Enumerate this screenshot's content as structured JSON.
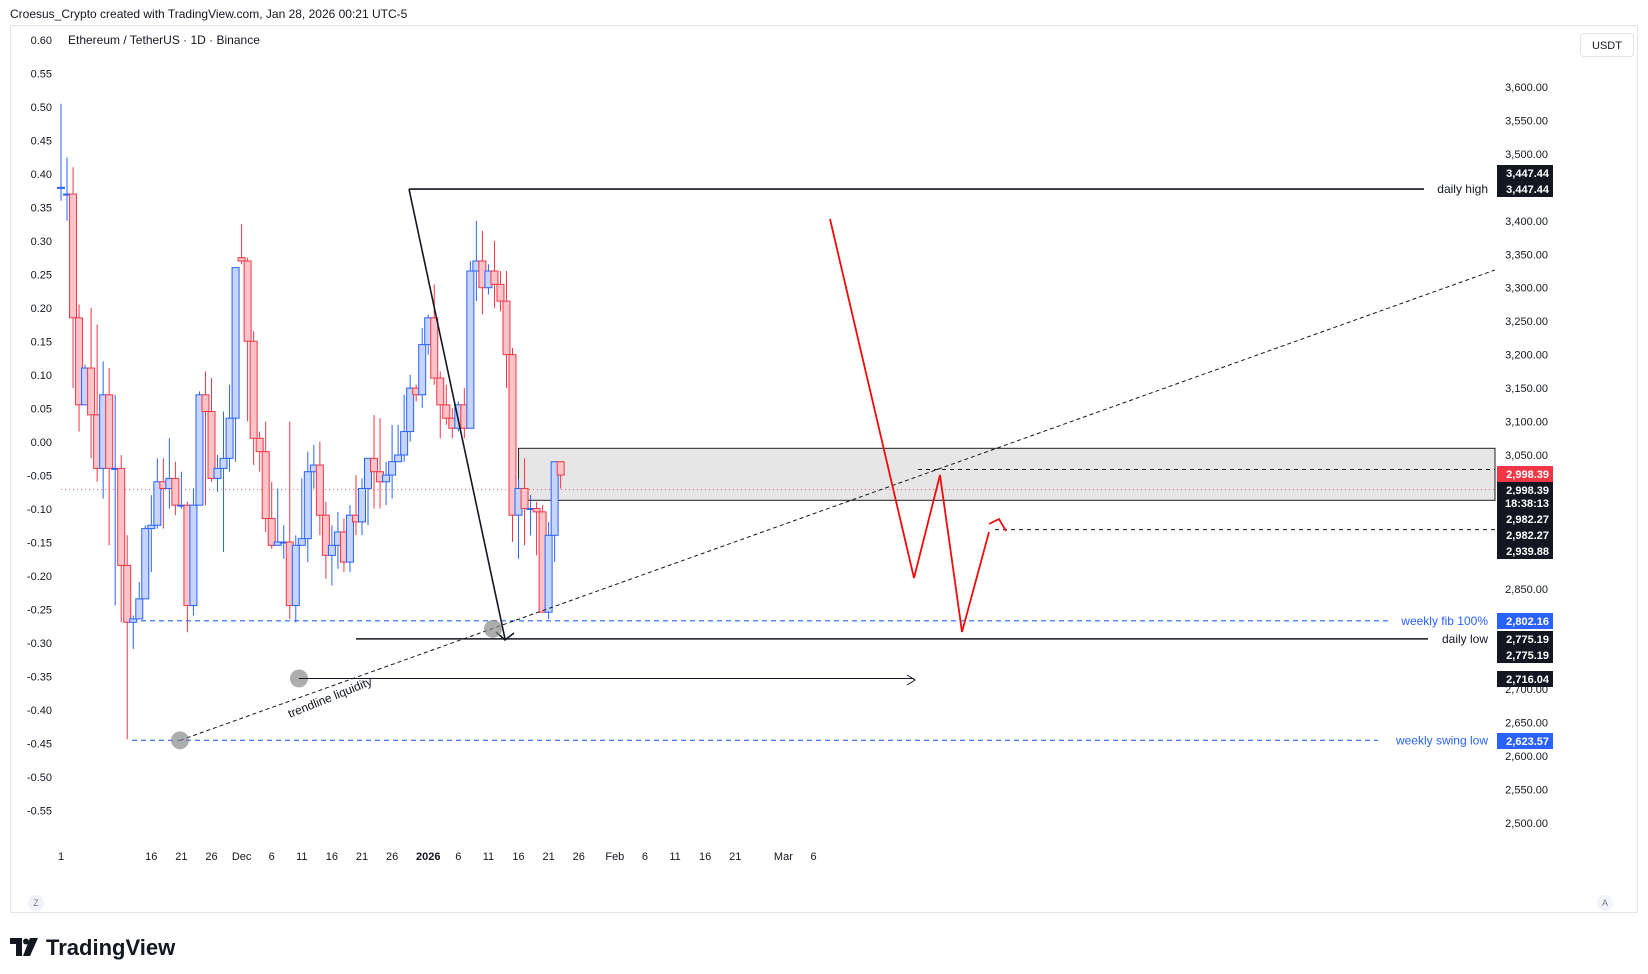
{
  "header": {
    "created_line": "Croesus_Crypto created with TradingView.com, Jan 28, 2026 00:21 UTC-5",
    "symbol_line": "Ethereum / TetherUS · 1D · Binance",
    "currency": "USDT",
    "brand": "TradingView",
    "scale_left_btn": "Z",
    "scale_auto_btn": "A"
  },
  "colors": {
    "up": "#2962ff",
    "down": "#f23645",
    "up_fill": "#c5d5ff",
    "down_fill": "#fcc3c8",
    "annotation_red": "#f20b0b",
    "fib_blue": "#2962ff"
  },
  "chart_data": {
    "type": "candlestick",
    "title": "Ethereum / TetherUS · 1D · Binance",
    "ylim": [
      2460,
      3680
    ],
    "y_ticks": [
      2500,
      2550,
      2600,
      2650,
      2700,
      2750,
      2800,
      2850,
      2900,
      2950,
      3000,
      3050,
      3100,
      3150,
      3200,
      3250,
      3300,
      3350,
      3400,
      3450,
      3500,
      3550,
      3600
    ],
    "y_tick_labels": [
      "2,500.00",
      "2,550.00",
      "2,600.00",
      "2,650.00",
      "2,700.00",
      "",
      "",
      "2,850.00",
      "",
      "",
      "",
      "3,050.00",
      "3,100.00",
      "3,150.00",
      "3,200.00",
      "3,250.00",
      "3,300.00",
      "3,350.00",
      "3,400.00",
      "",
      "3,500.00",
      "3,550.00",
      "3,600.00"
    ],
    "left_ticks": [
      "0.60",
      "0.55",
      "0.50",
      "0.45",
      "0.40",
      "0.35",
      "0.30",
      "0.25",
      "0.20",
      "0.15",
      "0.10",
      "0.05",
      "0.00",
      "-0.05",
      "-0.10",
      "-0.15",
      "-0.20",
      "-0.25",
      "-0.30",
      "-0.35",
      "-0.40",
      "-0.45",
      "-0.50",
      "-0.55"
    ],
    "x_labels": [
      {
        "label": "1",
        "day": 0
      },
      {
        "label": "16",
        "day": 15
      },
      {
        "label": "21",
        "day": 20
      },
      {
        "label": "26",
        "day": 25
      },
      {
        "label": "Dec",
        "day": 30
      },
      {
        "label": "6",
        "day": 35
      },
      {
        "label": "11",
        "day": 40
      },
      {
        "label": "16",
        "day": 45
      },
      {
        "label": "21",
        "day": 50
      },
      {
        "label": "26",
        "day": 55
      },
      {
        "label": "2026",
        "day": 61
      },
      {
        "label": "6",
        "day": 66
      },
      {
        "label": "11",
        "day": 71
      },
      {
        "label": "16",
        "day": 76
      },
      {
        "label": "21",
        "day": 81
      },
      {
        "label": "26",
        "day": 86
      },
      {
        "label": "Feb",
        "day": 92
      },
      {
        "label": "6",
        "day": 97
      },
      {
        "label": "11",
        "day": 102
      },
      {
        "label": "16",
        "day": 107
      },
      {
        "label": "21",
        "day": 112
      },
      {
        "label": "Mar",
        "day": 120
      },
      {
        "label": "6",
        "day": 125
      }
    ],
    "candles": [
      {
        "day": 0,
        "o": 3450,
        "h": 3575,
        "l": 3430,
        "c": 3450
      },
      {
        "day": 1,
        "o": 3440,
        "h": 3495,
        "l": 3400,
        "c": 3440
      },
      {
        "day": 2,
        "o": 3440,
        "h": 3480,
        "l": 3150,
        "c": 3255
      },
      {
        "day": 3,
        "o": 3255,
        "h": 3275,
        "l": 3085,
        "c": 3125
      },
      {
        "day": 4,
        "o": 3125,
        "h": 3185,
        "l": 3125,
        "c": 3180
      },
      {
        "day": 5,
        "o": 3180,
        "h": 3270,
        "l": 3045,
        "c": 3110
      },
      {
        "day": 6,
        "o": 3110,
        "h": 3245,
        "l": 3010,
        "c": 3030
      },
      {
        "day": 7,
        "o": 3030,
        "h": 3190,
        "l": 2985,
        "c": 3140
      },
      {
        "day": 8,
        "o": 3140,
        "h": 3180,
        "l": 2915,
        "c": 3030
      },
      {
        "day": 9,
        "o": 3030,
        "h": 3140,
        "l": 2825,
        "c": 3030
      },
      {
        "day": 10,
        "o": 3030,
        "h": 3050,
        "l": 2800,
        "c": 2885
      },
      {
        "day": 11,
        "o": 2885,
        "h": 2930,
        "l": 2625,
        "c": 2800
      },
      {
        "day": 12,
        "o": 2800,
        "h": 2810,
        "l": 2760,
        "c": 2805
      },
      {
        "day": 13,
        "o": 2805,
        "h": 2860,
        "l": 2805,
        "c": 2835
      },
      {
        "day": 14,
        "o": 2835,
        "h": 2945,
        "l": 2835,
        "c": 2940
      },
      {
        "day": 15,
        "o": 2940,
        "h": 2990,
        "l": 2875,
        "c": 2945
      },
      {
        "day": 16,
        "o": 2945,
        "h": 3045,
        "l": 2940,
        "c": 3010
      },
      {
        "day": 17,
        "o": 3010,
        "h": 3045,
        "l": 2940,
        "c": 3000
      },
      {
        "day": 18,
        "o": 3000,
        "h": 3075,
        "l": 2970,
        "c": 3015
      },
      {
        "day": 19,
        "o": 3015,
        "h": 3040,
        "l": 2960,
        "c": 2975
      },
      {
        "day": 20,
        "o": 2975,
        "h": 3025,
        "l": 2970,
        "c": 2975
      },
      {
        "day": 21,
        "o": 2975,
        "h": 2980,
        "l": 2785,
        "c": 2825
      },
      {
        "day": 22,
        "o": 2825,
        "h": 3000,
        "l": 2810,
        "c": 2975
      },
      {
        "day": 23,
        "o": 2975,
        "h": 3145,
        "l": 2975,
        "c": 3140
      },
      {
        "day": 24,
        "o": 3140,
        "h": 3175,
        "l": 2975,
        "c": 3115
      },
      {
        "day": 25,
        "o": 3115,
        "h": 3165,
        "l": 3010,
        "c": 3015
      },
      {
        "day": 26,
        "o": 3015,
        "h": 3050,
        "l": 2995,
        "c": 3030
      },
      {
        "day": 27,
        "o": 3030,
        "h": 3115,
        "l": 2905,
        "c": 3045
      },
      {
        "day": 28,
        "o": 3045,
        "h": 3155,
        "l": 3025,
        "c": 3105
      },
      {
        "day": 29,
        "o": 3105,
        "h": 3320,
        "l": 3040,
        "c": 3330
      },
      {
        "day": 30,
        "o": 3345,
        "h": 3395,
        "l": 3335,
        "c": 3340
      },
      {
        "day": 31,
        "o": 3340,
        "h": 3345,
        "l": 3100,
        "c": 3220
      },
      {
        "day": 32,
        "o": 3220,
        "h": 3235,
        "l": 3035,
        "c": 3075
      },
      {
        "day": 33,
        "o": 3075,
        "h": 3085,
        "l": 3025,
        "c": 3055
      },
      {
        "day": 34,
        "o": 3055,
        "h": 3100,
        "l": 2935,
        "c": 2955
      },
      {
        "day": 35,
        "o": 2955,
        "h": 3010,
        "l": 2910,
        "c": 2915
      },
      {
        "day": 36,
        "o": 2915,
        "h": 3000,
        "l": 2915,
        "c": 2920
      },
      {
        "day": 37,
        "o": 2920,
        "h": 2945,
        "l": 2895,
        "c": 2920
      },
      {
        "day": 38,
        "o": 2920,
        "h": 3100,
        "l": 2805,
        "c": 2825
      },
      {
        "day": 39,
        "o": 2825,
        "h": 2930,
        "l": 2800,
        "c": 2915
      },
      {
        "day": 40,
        "o": 2915,
        "h": 3015,
        "l": 2915,
        "c": 2925
      },
      {
        "day": 41,
        "o": 2925,
        "h": 3055,
        "l": 2890,
        "c": 3025
      },
      {
        "day": 42,
        "o": 3025,
        "h": 3065,
        "l": 3000,
        "c": 3035
      },
      {
        "day": 43,
        "o": 3035,
        "h": 3070,
        "l": 2930,
        "c": 2960
      },
      {
        "day": 44,
        "o": 2960,
        "h": 2980,
        "l": 2865,
        "c": 2900
      },
      {
        "day": 45,
        "o": 2900,
        "h": 2945,
        "l": 2855,
        "c": 2915
      },
      {
        "day": 46,
        "o": 2915,
        "h": 2965,
        "l": 2880,
        "c": 2935
      },
      {
        "day": 47,
        "o": 2935,
        "h": 2955,
        "l": 2875,
        "c": 2890
      },
      {
        "day": 48,
        "o": 2890,
        "h": 2975,
        "l": 2875,
        "c": 2960
      },
      {
        "day": 49,
        "o": 2960,
        "h": 3020,
        "l": 2930,
        "c": 2950
      },
      {
        "day": 50,
        "o": 2950,
        "h": 3015,
        "l": 2930,
        "c": 3000
      },
      {
        "day": 51,
        "o": 3000,
        "h": 3035,
        "l": 2945,
        "c": 3045
      },
      {
        "day": 52,
        "o": 3045,
        "h": 3110,
        "l": 2970,
        "c": 3025
      },
      {
        "day": 53,
        "o": 3025,
        "h": 3105,
        "l": 2970,
        "c": 3010
      },
      {
        "day": 54,
        "o": 3010,
        "h": 3040,
        "l": 2975,
        "c": 3020
      },
      {
        "day": 55,
        "o": 3020,
        "h": 3095,
        "l": 2985,
        "c": 3040
      },
      {
        "day": 56,
        "o": 3040,
        "h": 3095,
        "l": 3040,
        "c": 3050
      },
      {
        "day": 57,
        "o": 3050,
        "h": 3140,
        "l": 3040,
        "c": 3085
      },
      {
        "day": 58,
        "o": 3085,
        "h": 3170,
        "l": 3070,
        "c": 3150
      },
      {
        "day": 59,
        "o": 3150,
        "h": 3155,
        "l": 3130,
        "c": 3140
      },
      {
        "day": 60,
        "o": 3140,
        "h": 3240,
        "l": 3120,
        "c": 3215
      },
      {
        "day": 61,
        "o": 3215,
        "h": 3260,
        "l": 3200,
        "c": 3255
      },
      {
        "day": 62,
        "o": 3255,
        "h": 3305,
        "l": 3155,
        "c": 3165
      },
      {
        "day": 63,
        "o": 3165,
        "h": 3175,
        "l": 3075,
        "c": 3125
      },
      {
        "day": 64,
        "o": 3125,
        "h": 3155,
        "l": 3095,
        "c": 3105
      },
      {
        "day": 65,
        "o": 3105,
        "h": 3120,
        "l": 3075,
        "c": 3090
      },
      {
        "day": 66,
        "o": 3090,
        "h": 3130,
        "l": 3085,
        "c": 3125
      },
      {
        "day": 67,
        "o": 3125,
        "h": 3150,
        "l": 3075,
        "c": 3090
      },
      {
        "day": 68,
        "o": 3090,
        "h": 3340,
        "l": 3090,
        "c": 3325
      },
      {
        "day": 69,
        "o": 3325,
        "h": 3400,
        "l": 3280,
        "c": 3340
      },
      {
        "day": 70,
        "o": 3340,
        "h": 3385,
        "l": 3260,
        "c": 3300
      },
      {
        "day": 71,
        "o": 3300,
        "h": 3335,
        "l": 3290,
        "c": 3325
      },
      {
        "day": 72,
        "o": 3325,
        "h": 3370,
        "l": 3270,
        "c": 3305
      },
      {
        "day": 73,
        "o": 3305,
        "h": 3325,
        "l": 3265,
        "c": 3280
      },
      {
        "day": 74,
        "o": 3280,
        "h": 3325,
        "l": 3150,
        "c": 3200
      },
      {
        "day": 75,
        "o": 3200,
        "h": 3210,
        "l": 2920,
        "c": 2960
      },
      {
        "day": 76,
        "o": 2960,
        "h": 3015,
        "l": 2895,
        "c": 3000
      },
      {
        "day": 77,
        "o": 3000,
        "h": 3045,
        "l": 2915,
        "c": 2970
      },
      {
        "day": 78,
        "o": 2970,
        "h": 2990,
        "l": 2930,
        "c": 2970
      },
      {
        "day": 79,
        "o": 2970,
        "h": 2980,
        "l": 2900,
        "c": 2965
      },
      {
        "day": 80,
        "o": 2965,
        "h": 2975,
        "l": 2815,
        "c": 2815
      },
      {
        "day": 81,
        "o": 2815,
        "h": 2950,
        "l": 2805,
        "c": 2930
      },
      {
        "day": 82,
        "o": 2930,
        "h": 3040,
        "l": 2890,
        "c": 3040
      },
      {
        "day": 83,
        "o": 3040,
        "h": 3040,
        "l": 3000,
        "c": 3020
      }
    ],
    "annotations": {
      "daily_high": {
        "label": "daily high",
        "value": 3447.44,
        "price_text": "3,447.44"
      },
      "daily_low": {
        "label": "daily low",
        "value": 2775.19,
        "price_text": "2,775.19"
      },
      "weekly_fib": {
        "label": "weekly fib 100%",
        "value": 2802.16,
        "price_text": "2,802.16"
      },
      "weekly_swing_low": {
        "label": "weekly swing low",
        "value": 2623.57,
        "price_text": "2,623.57"
      },
      "trendline_label": "trendline liquidity",
      "level_2716": {
        "value": 2716.04,
        "price_text": "2,716.04"
      },
      "level_2982": {
        "value": 2982.27,
        "price_text": "2,982.27"
      },
      "level_2939": {
        "value": 2939.88,
        "price_text": "2,939.88"
      },
      "current_price": {
        "value": 2998.39,
        "price_text": "2,998.39",
        "countdown": "18:38:13"
      },
      "box": {
        "top": 3060,
        "bottom": 2982.27,
        "day_start": 76,
        "day_end": 107
      }
    }
  }
}
